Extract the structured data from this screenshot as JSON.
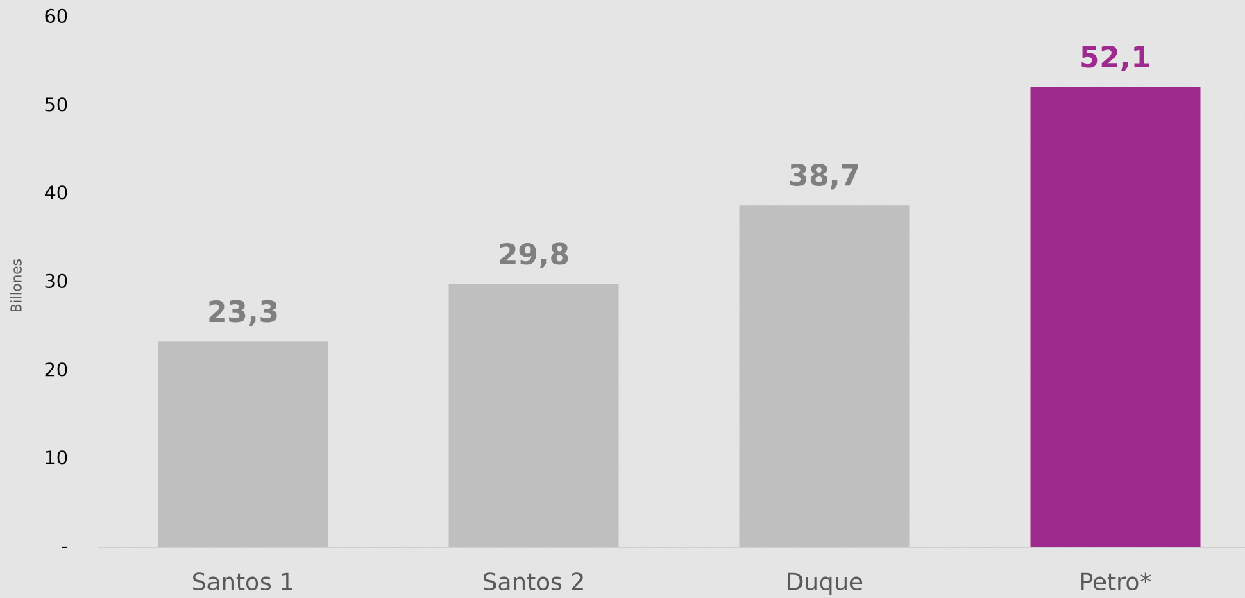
{
  "chart_data": {
    "type": "bar",
    "y_label": "Billones",
    "categories": [
      "Santos 1",
      "Santos 2",
      "Duque",
      "Petro*"
    ],
    "values": [
      23.3,
      29.8,
      38.7,
      52.1
    ],
    "value_labels": [
      "23,3",
      "29,8",
      "38,7",
      "52,1"
    ],
    "colors": [
      "#bfbfbf",
      "#bfbfbf",
      "#bfbfbf",
      "#9e2a8e"
    ],
    "label_colors": [
      "#7f7f7f",
      "#7f7f7f",
      "#7f7f7f",
      "#9e2a8e"
    ],
    "ylim": [
      0,
      60
    ],
    "yticks": [
      {
        "value": 0,
        "label": "-"
      },
      10,
      20,
      30,
      40,
      50,
      60
    ],
    "grid": false
  }
}
